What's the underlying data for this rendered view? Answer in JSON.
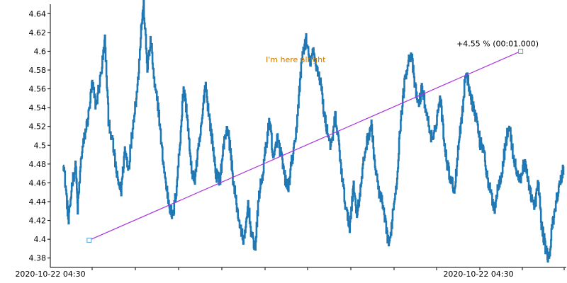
{
  "chart_data": {
    "type": "line",
    "title": "",
    "xlabel": "",
    "ylabel": "",
    "ylim": [
      4.37,
      4.65
    ],
    "yticks": [
      4.38,
      4.4,
      4.42,
      4.44,
      4.46,
      4.48,
      4.5,
      4.52,
      4.54,
      4.56,
      4.58,
      4.6,
      4.62,
      4.64
    ],
    "ytick_labels": [
      "4.38",
      "4.4",
      "4.42",
      "4.44",
      "4.46",
      "4.48",
      "4.5",
      "4.52",
      "4.54",
      "4.56",
      "4.58",
      "4.6",
      "4.62",
      "4.64"
    ],
    "x_tick_labels": [
      "2020-10-22 04:30",
      "2020-10-22 04:30"
    ],
    "series": [
      {
        "color": "#1f77b4",
        "anchors": [
          [
            0.0,
            4.485
          ],
          [
            0.01,
            4.442
          ],
          [
            0.015,
            4.418
          ],
          [
            0.025,
            4.462
          ],
          [
            0.035,
            4.478
          ],
          [
            0.04,
            4.432
          ],
          [
            0.05,
            4.488
          ],
          [
            0.06,
            4.512
          ],
          [
            0.07,
            4.532
          ],
          [
            0.08,
            4.566
          ],
          [
            0.09,
            4.542
          ],
          [
            0.105,
            4.578
          ],
          [
            0.115,
            4.612
          ],
          [
            0.125,
            4.528
          ],
          [
            0.14,
            4.492
          ],
          [
            0.15,
            4.462
          ],
          [
            0.16,
            4.452
          ],
          [
            0.17,
            4.496
          ],
          [
            0.18,
            4.476
          ],
          [
            0.195,
            4.532
          ],
          [
            0.205,
            4.562
          ],
          [
            0.215,
            4.624
          ],
          [
            0.222,
            4.648
          ],
          [
            0.232,
            4.582
          ],
          [
            0.242,
            4.612
          ],
          [
            0.252,
            4.562
          ],
          [
            0.262,
            4.542
          ],
          [
            0.272,
            4.496
          ],
          [
            0.282,
            4.462
          ],
          [
            0.292,
            4.438
          ],
          [
            0.302,
            4.422
          ],
          [
            0.312,
            4.452
          ],
          [
            0.322,
            4.502
          ],
          [
            0.332,
            4.562
          ],
          [
            0.342,
            4.532
          ],
          [
            0.352,
            4.478
          ],
          [
            0.362,
            4.462
          ],
          [
            0.372,
            4.492
          ],
          [
            0.382,
            4.522
          ],
          [
            0.392,
            4.568
          ],
          [
            0.402,
            4.532
          ],
          [
            0.412,
            4.502
          ],
          [
            0.422,
            4.468
          ],
          [
            0.432,
            4.462
          ],
          [
            0.442,
            4.498
          ],
          [
            0.452,
            4.522
          ],
          [
            0.462,
            4.492
          ],
          [
            0.47,
            4.458
          ],
          [
            0.48,
            4.432
          ],
          [
            0.49,
            4.408
          ],
          [
            0.5,
            4.398
          ],
          [
            0.51,
            4.438
          ],
          [
            0.52,
            4.402
          ],
          [
            0.53,
            4.392
          ],
          [
            0.54,
            4.448
          ],
          [
            0.55,
            4.468
          ],
          [
            0.56,
            4.502
          ],
          [
            0.57,
            4.528
          ],
          [
            0.58,
            4.482
          ],
          [
            0.59,
            4.508
          ],
          [
            0.6,
            4.492
          ],
          [
            0.61,
            4.468
          ],
          [
            0.62,
            4.452
          ],
          [
            0.63,
            4.482
          ],
          [
            0.64,
            4.502
          ],
          [
            0.65,
            4.552
          ],
          [
            0.66,
            4.598
          ],
          [
            0.67,
            4.612
          ],
          [
            0.68,
            4.588
          ],
          [
            0.69,
            4.598
          ],
          [
            0.7,
            4.582
          ],
          [
            0.71,
            4.568
          ],
          [
            0.72,
            4.532
          ],
          [
            0.73,
            4.512
          ],
          [
            0.74,
            4.498
          ],
          [
            0.75,
            4.532
          ],
          [
            0.76,
            4.502
          ],
          [
            0.77,
            4.462
          ],
          [
            0.78,
            4.432
          ],
          [
            0.79,
            4.412
          ],
          [
            0.8,
            4.458
          ],
          [
            0.81,
            4.428
          ],
          [
            0.82,
            4.452
          ],
          [
            0.83,
            4.488
          ],
          [
            0.84,
            4.508
          ],
          [
            0.85,
            4.522
          ],
          [
            0.86,
            4.478
          ],
          [
            0.87,
            4.452
          ],
          [
            0.88,
            4.438
          ],
          [
            0.89,
            4.412
          ],
          [
            0.9,
            4.392
          ],
          [
            0.91,
            4.432
          ],
          [
            0.92,
            4.462
          ],
          [
            0.93,
            4.522
          ],
          [
            0.94,
            4.562
          ],
          [
            0.95,
            4.588
          ],
          [
            0.96,
            4.598
          ],
          [
            0.97,
            4.562
          ],
          [
            0.98,
            4.542
          ],
          [
            0.99,
            4.562
          ],
          [
            1.0,
            4.538
          ],
          [
            1.01,
            4.518
          ],
          [
            1.02,
            4.502
          ],
          [
            1.03,
            4.528
          ],
          [
            1.04,
            4.552
          ],
          [
            1.05,
            4.508
          ],
          [
            1.06,
            4.478
          ],
          [
            1.07,
            4.462
          ],
          [
            1.08,
            4.452
          ],
          [
            1.09,
            4.502
          ],
          [
            1.1,
            4.532
          ],
          [
            1.11,
            4.578
          ],
          [
            1.12,
            4.562
          ],
          [
            1.13,
            4.542
          ],
          [
            1.14,
            4.528
          ],
          [
            1.15,
            4.502
          ],
          [
            1.16,
            4.498
          ],
          [
            1.17,
            4.462
          ],
          [
            1.18,
            4.448
          ],
          [
            1.19,
            4.432
          ],
          [
            1.2,
            4.458
          ],
          [
            1.21,
            4.472
          ],
          [
            1.22,
            4.502
          ],
          [
            1.23,
            4.522
          ],
          [
            1.24,
            4.492
          ],
          [
            1.25,
            4.472
          ],
          [
            1.26,
            4.462
          ],
          [
            1.27,
            4.482
          ],
          [
            1.28,
            4.468
          ],
          [
            1.29,
            4.448
          ],
          [
            1.3,
            4.432
          ],
          [
            1.31,
            4.462
          ],
          [
            1.32,
            4.412
          ],
          [
            1.33,
            4.392
          ],
          [
            1.34,
            4.378
          ],
          [
            1.35,
            4.418
          ],
          [
            1.36,
            4.442
          ],
          [
            1.37,
            4.458
          ],
          [
            1.38,
            4.478
          ]
        ]
      }
    ],
    "trend_line": {
      "color": "#aa33dd",
      "start": [
        0.072,
        4.399
      ],
      "end": [
        1.262,
        4.6
      ]
    },
    "annotations": [
      {
        "text": "+4.55 %  (00:01.000)",
        "color": "#000000"
      },
      {
        "text": "I'm here alright",
        "color": "#c87800"
      }
    ]
  }
}
